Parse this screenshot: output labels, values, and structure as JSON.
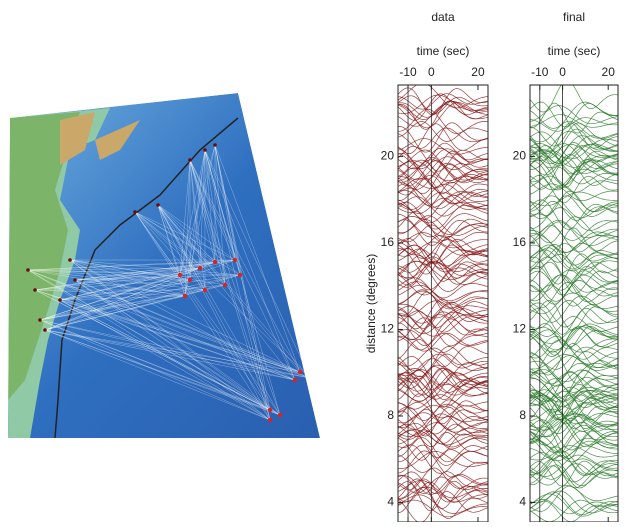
{
  "chart_data": [
    {
      "type": "line",
      "title": "data",
      "x_label": "time (sec)",
      "y_label": "distance (degrees)",
      "color": "#8b1c1c",
      "xlim": [
        -14.3,
        24.3
      ],
      "xticks": [
        -10,
        0,
        20
      ],
      "ylim": [
        3.1,
        23.3
      ],
      "yticks": [
        4,
        8,
        12,
        16,
        20
      ]
    },
    {
      "type": "line",
      "title": "final",
      "x_label": "time (sec)",
      "color": "#2e7d2e",
      "xlim": [
        -14.3,
        24.3
      ],
      "xticks": [
        -10,
        0,
        20
      ],
      "ylim": [
        3.1,
        23.3
      ],
      "yticks": [
        4,
        8,
        12,
        16,
        20
      ]
    }
  ]
}
